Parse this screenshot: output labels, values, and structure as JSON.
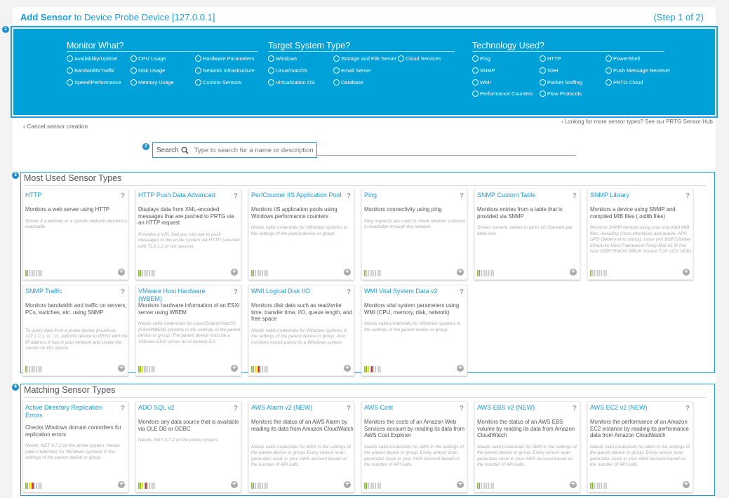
{
  "header": {
    "title_bold": "Add Sensor",
    "title_rest": " to Device Probe Device [127.0.0.1]",
    "step": "(Step 1 of 2)"
  },
  "markers": [
    "1",
    "2",
    "3",
    "4"
  ],
  "filters": [
    {
      "heading": "Monitor What?",
      "options": [
        "Availability/Uptime",
        "CPU Usage",
        "Hardware Parameters",
        "Bandwidth/Traffic",
        "Disk Usage",
        "Network Infrastructure",
        "Speed/Performance",
        "Memory Usage",
        "Custom Sensors"
      ],
      "cols": 3
    },
    {
      "heading": "Target System Type?",
      "options": [
        "Windows",
        "Storage and File Server",
        "Cloud Services",
        "Linux/macOS",
        "Email Server",
        "",
        "Virtualization OS",
        "Database",
        ""
      ],
      "cols": 3
    },
    {
      "heading": "Technology Used?",
      "options": [
        "Ping",
        "HTTP",
        "PowerShell",
        "SNMP",
        "SSH",
        "Push Message Receiver",
        "WMI",
        "Packet Sniffing",
        "PRTG Cloud",
        "Performance Counters",
        "Flow Protocols",
        ""
      ],
      "cols": 3
    }
  ],
  "cancel": "‹ Cancel sensor creation",
  "hub": "› Looking for more sensor types? See our PRTG Sensor Hub.",
  "search": {
    "label": "Search",
    "placeholder": "Type to search for a name or description"
  },
  "bar_colors": [
    "#8cc63f",
    "#6cb52d",
    "#f2e500",
    "#f7941d",
    "#e2231a"
  ],
  "sections": [
    {
      "title": "Most Used Sensor Types",
      "cards": [
        {
          "title": "HTTP",
          "desc": "Monitors a web server using HTTP",
          "note": "Shows if a website or a specific website element is reachable.",
          "impact": 2
        },
        {
          "title": "HTTP Push Data Advanced",
          "desc": "Displays data from XML-encoded messages that are pushed to PRTG via an HTTP request",
          "note": "Provides a URL that you can use to push messages to the probe system via HTTP (secured with TLS 1.2 or not secure).",
          "impact": 2
        },
        {
          "title": "PerfCounter IIS Application Pool",
          "desc": "Monitors IIS application pools using Windows performance counters",
          "note": "Needs valid credentials for Windows systems in the settings of the parent device or group.",
          "impact": 2
        },
        {
          "title": "Ping",
          "desc": "Monitors connectivity using ping",
          "note": "Ping requests are used to check whether a device is reachable through the network.",
          "impact": 1
        },
        {
          "title": "SNMP Custom Table",
          "desc": "Monitors entries from a table that is provided via SNMP",
          "note": "Shows numeric values in up to 10 channels per table row.",
          "impact": 2
        },
        {
          "title": "SNMP Library",
          "desc": "Monitors a device using SNMP and compiled MIB files (.oidlib files)",
          "note": "Monitors SNMP devices using your imported MIB files, including Cisco interfaces and queue, APC UPS (battery ems status), Linux (AX BGP DisMan EtherLike Host Framework Proxy Noti v2 IP Net Noti OSPF RMON SMUX Source TCP UCD UDP).",
          "impact": 1
        },
        {
          "title": "SNMP Traffic",
          "desc": "Monitors bandwidth and traffic on servers, PCs, switches, etc. using SNMP",
          "note": "To query data from a probe device (localhost, 127.0.0.1, or ::1), add this device to PRTG with the IP address it has in your network and create the sensor on this device.",
          "impact": 1
        },
        {
          "title": "VMware Host Hardware (WBEM)",
          "desc": "Monitors hardware information of an ESXi server using WBEM",
          "note": "Needs valid credentials for Linux/Solaris/macOS (SSH/WBEM) systems in the settings of the parent device or group. The parent device must be a VMware ESXi server as of version 5.0.",
          "impact": 4
        },
        {
          "title": "WMI Logical Disk I/O",
          "desc": "Monitors disk data such as read/write time, transfer time, I/O, queue length, and free space",
          "note": "Needs valid credentials for Windows systems in the settings of the parent device or group. Also monitors mount points on a Windows system.",
          "impact": 5
        },
        {
          "title": "WMI Vital System Data v2",
          "desc": "Monitors vital system parameters using WMI (CPU, memory, disk, network)",
          "note": "Needs valid credentials for Windows systems in the settings of the parent device or group.",
          "impact": 5
        }
      ]
    },
    {
      "title": "Matching Sensor Types",
      "cards": [
        {
          "title": "Active Directory Replication Errors",
          "desc": "Checks Windows domain controllers for replication errors",
          "note": "Needs .NET 4.7.2 on the probe system. Needs valid credentials for Windows systems in the settings of the parent device or group.",
          "impact": 5
        },
        {
          "title": "ADO SQL v2",
          "desc": "Monitors any data source that is available via OLE DB or ODBC",
          "note": "Needs .NET 4.7.2 on the probe system.",
          "impact": 5
        },
        {
          "title": "AWS Alarm v2 (NEW)",
          "desc": "Monitors the status of an AWS Alarm by reading its data from Amazon CloudWatch",
          "note": "Needs valid credentials for AWS in the settings of the parent device or group. Every sensor scan generates costs in your AWS account based on the number of API calls.",
          "impact": 2
        },
        {
          "title": "AWS Cost",
          "desc": "Monitors the costs of an Amazon Web Services account by reading its data from AWS Cost Explorer",
          "note": "Needs valid credentials for AWS in the settings of the parent device or group. Every sensor scan generates costs in your AWS account based on the number of API calls.",
          "impact": 2
        },
        {
          "title": "AWS EBS v2 (NEW)",
          "desc": "Monitors the status of an AWS EBS volume by reading its data from Amazon CloudWatch",
          "note": "Needs valid credentials for AWS in the settings of the parent device or group. Every sensor scan generates costs in your AWS account based on the number of API calls.",
          "impact": 2
        },
        {
          "title": "AWS EC2 v2 (NEW)",
          "desc": "Monitors the performance of an Amazon EC2 instance by reading its performance data from Amazon CloudWatch",
          "note": "Needs valid credentials for AWS in the settings of the parent device or group. Every sensor scan generates costs in your AWS account based on the number of API calls.",
          "impact": 2
        }
      ]
    }
  ]
}
